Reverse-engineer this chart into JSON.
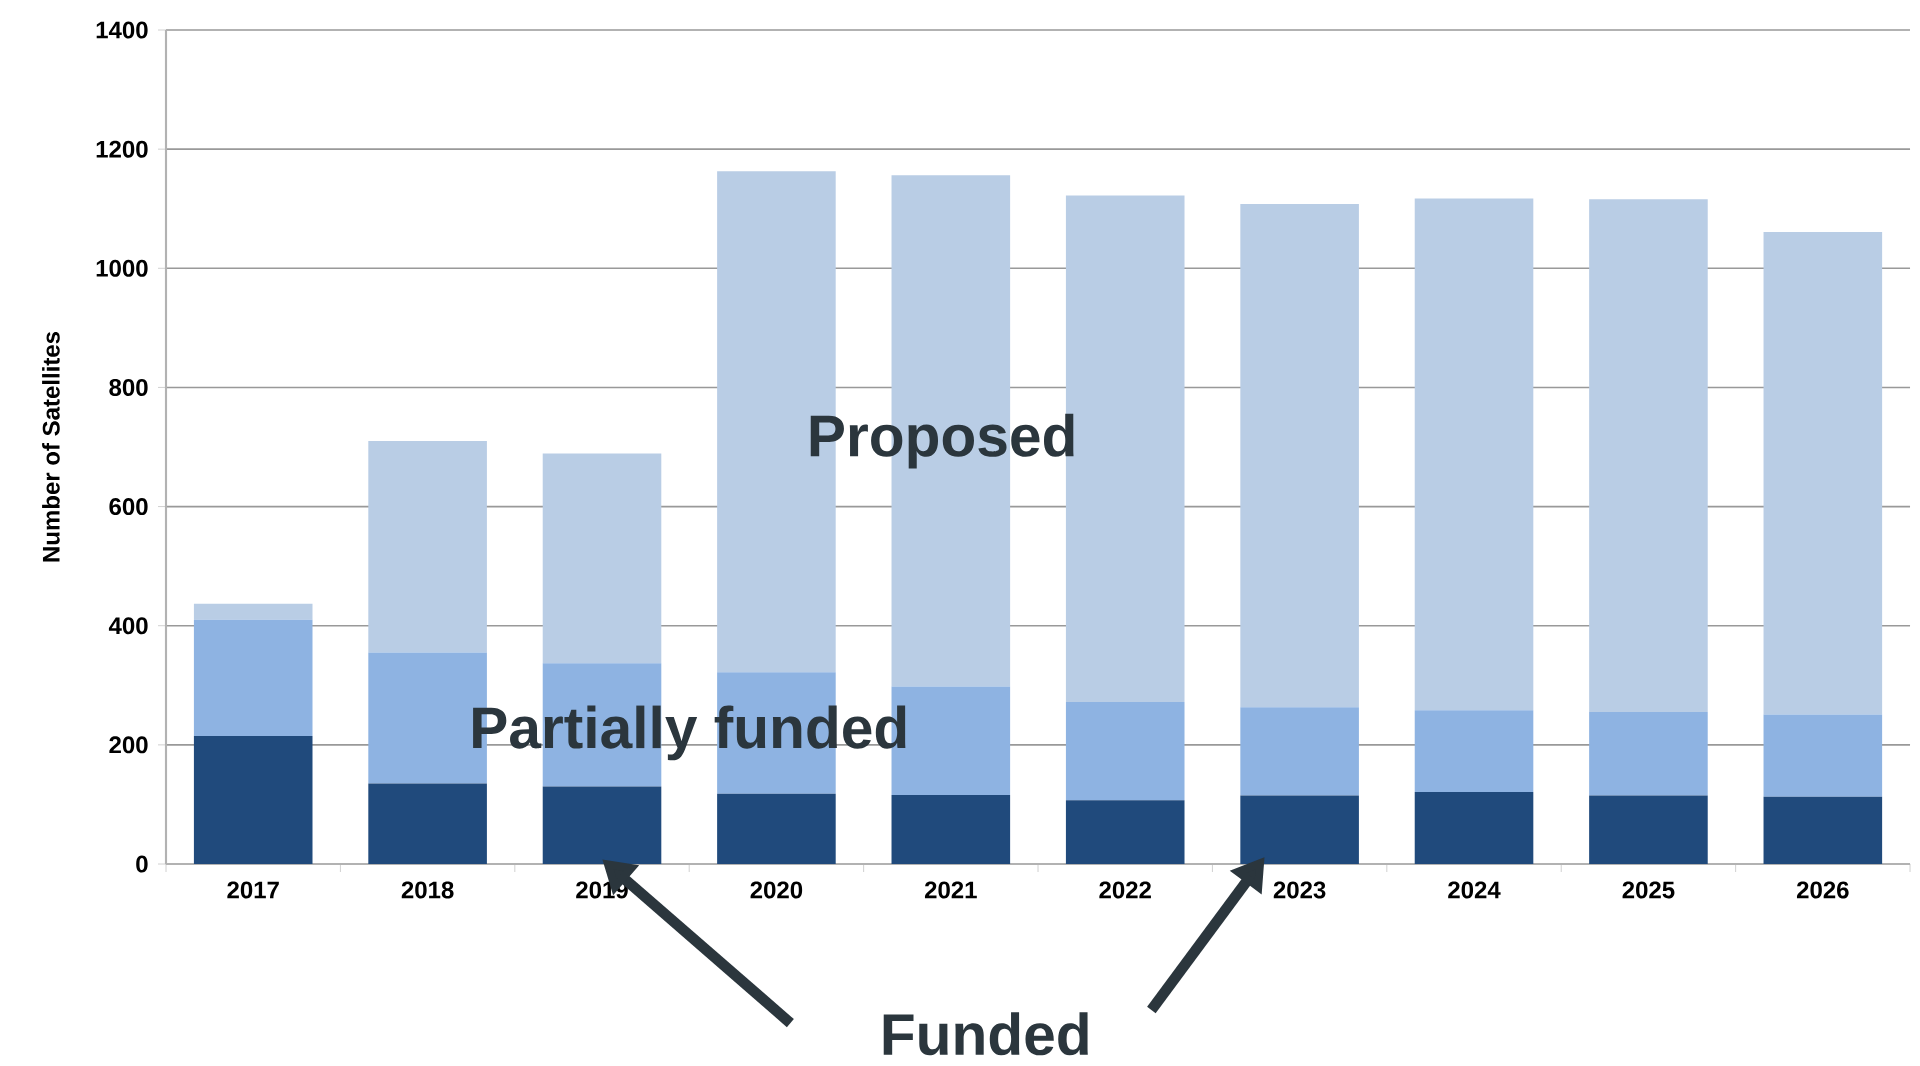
{
  "chart_data": {
    "type": "bar",
    "stacked": true,
    "ylabel": "Number of Satellites",
    "categories": [
      "2017",
      "2018",
      "2019",
      "2020",
      "2021",
      "2022",
      "2023",
      "2024",
      "2025",
      "2026"
    ],
    "series": [
      {
        "name": "Funded",
        "color": "#204a7c",
        "values": [
          215,
          135,
          130,
          118,
          116,
          107,
          115,
          121,
          115,
          113
        ]
      },
      {
        "name": "Partially funded",
        "color": "#8eb3e2",
        "values": [
          195,
          220,
          207,
          204,
          182,
          165,
          148,
          137,
          140,
          138
        ]
      },
      {
        "name": "Proposed",
        "color": "#b9cde5",
        "values": [
          27,
          355,
          352,
          841,
          858,
          850,
          845,
          859,
          861,
          810
        ]
      }
    ],
    "ylim": [
      0,
      1400
    ],
    "yticks": [
      0,
      200,
      400,
      600,
      800,
      1000,
      1200,
      1400
    ],
    "grid": "y",
    "legend": false
  }
}
